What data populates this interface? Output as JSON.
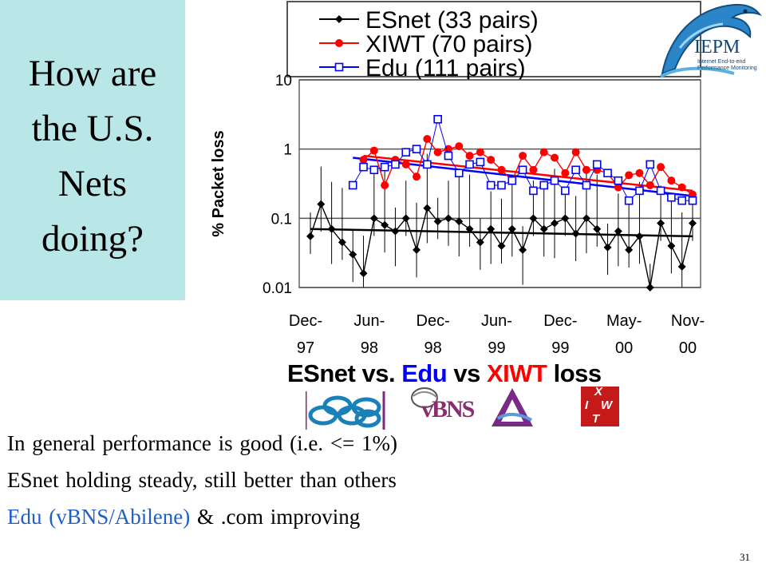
{
  "slide": {
    "title_lines": [
      "How are",
      "the U.S.",
      "Nets",
      "doing?"
    ],
    "caption": {
      "part1": "ESnet vs. ",
      "part2": "Edu",
      "part3": " vs ",
      "part4": "XIWT",
      "part5": " loss"
    },
    "bullets": [
      {
        "text": "In general performance is good (i.e. <= 1%)"
      },
      {
        "text": "ESnet holding steady, still better than others"
      },
      {
        "edu": "Edu (vBNS/Abilene)",
        "rest": " & .com improving"
      }
    ],
    "slide_number": "31",
    "logos": {
      "iepm": {
        "name": "IEPM",
        "tagline": "Internet End-to-end Performance Monitoring"
      },
      "vbns": {
        "text": "vBNS"
      },
      "xiwt": {
        "letters": [
          "X",
          "I",
          "W",
          "T"
        ]
      }
    },
    "colors": {
      "esnet": "#000000",
      "xiwt": "#ff0000",
      "edu": "#0000ff",
      "panel": "#b9e6e6",
      "edu_text": "#1f5fc8"
    }
  },
  "chart_data": {
    "type": "line",
    "y_scale": "log",
    "ylim": [
      0.01,
      10
    ],
    "yticks": [
      "0.01",
      "0.1",
      "1",
      "10"
    ],
    "ylabel": "% Packet loss",
    "xticks": [
      [
        "Dec-",
        "97"
      ],
      [
        "Jun-",
        "98"
      ],
      [
        "Dec-",
        "98"
      ],
      [
        "Jun-",
        "99"
      ],
      [
        "Dec-",
        "99"
      ],
      [
        "May-",
        "00"
      ],
      [
        "Nov-",
        "00"
      ]
    ],
    "xlim": [
      0,
      36
    ],
    "grid": "horizontal",
    "legend_position": "top",
    "series": [
      {
        "name": "ESnet (33 pairs)",
        "color": "#000000",
        "marker": "diamond",
        "x": [
          0,
          1,
          2,
          3,
          4,
          5,
          6,
          7,
          8,
          9,
          10,
          11,
          12,
          13,
          14,
          15,
          16,
          17,
          18,
          19,
          20,
          21,
          22,
          23,
          24,
          25,
          26,
          27,
          28,
          29,
          30,
          31,
          32,
          33,
          34,
          35,
          36
        ],
        "values": [
          0.055,
          0.16,
          0.07,
          0.045,
          0.03,
          0.016,
          0.1,
          0.08,
          0.065,
          0.1,
          0.035,
          0.14,
          0.09,
          0.1,
          0.09,
          0.07,
          0.045,
          0.07,
          0.04,
          0.07,
          0.035,
          0.1,
          0.07,
          0.085,
          0.1,
          0.06,
          0.1,
          0.07,
          0.038,
          0.065,
          0.035,
          0.055,
          0.01,
          0.085,
          0.04,
          0.02,
          0.085
        ],
        "trend": [
          0.07,
          0.055
        ]
      },
      {
        "name": "XIWT (70 pairs)",
        "color": "#ff0000",
        "marker": "circle",
        "x": [
          5,
          6,
          7,
          8,
          9,
          10,
          11,
          12,
          13,
          14,
          15,
          16,
          17,
          18,
          19,
          20,
          21,
          22,
          23,
          24,
          25,
          26,
          27,
          28,
          29,
          30,
          31,
          32,
          33,
          34,
          35,
          36
        ],
        "values": [
          0.7,
          0.95,
          0.3,
          0.7,
          0.6,
          0.4,
          1.4,
          0.9,
          1.0,
          1.1,
          0.8,
          0.9,
          0.7,
          0.5,
          0.35,
          0.8,
          0.5,
          0.9,
          0.75,
          0.45,
          0.9,
          0.5,
          0.5,
          0.45,
          0.28,
          0.42,
          0.45,
          0.3,
          0.55,
          0.35,
          0.28,
          0.22
        ],
        "trend": [
          0.8,
          0.25
        ]
      },
      {
        "name": "Edu (111 pairs)",
        "color": "#0000ff",
        "marker": "square",
        "x": [
          4,
          5,
          6,
          7,
          8,
          9,
          10,
          11,
          12,
          13,
          14,
          15,
          16,
          17,
          18,
          19,
          20,
          21,
          22,
          23,
          24,
          25,
          26,
          27,
          28,
          29,
          30,
          31,
          32,
          33,
          34,
          35,
          36
        ],
        "values": [
          0.3,
          0.55,
          0.5,
          0.55,
          0.6,
          0.9,
          1.0,
          0.6,
          2.7,
          0.8,
          0.45,
          0.6,
          0.65,
          0.3,
          0.3,
          0.35,
          0.5,
          0.25,
          0.3,
          0.35,
          0.25,
          0.5,
          0.3,
          0.6,
          0.45,
          0.35,
          0.18,
          0.25,
          0.6,
          0.25,
          0.2,
          0.18,
          0.18
        ],
        "trend": [
          0.75,
          0.21
        ]
      }
    ]
  }
}
